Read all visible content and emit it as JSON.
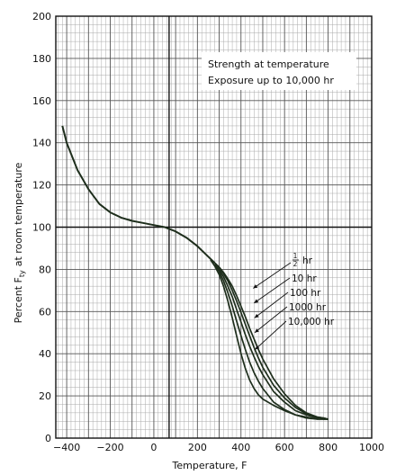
{
  "chart_data": {
    "type": "line",
    "xlabel": "Temperature, F",
    "ylabel": "Percent F",
    "ylabel_sub": "ty",
    "ylabel_suffix": "at room temperature",
    "xlim": [
      -450,
      1000
    ],
    "ylim": [
      0,
      200
    ],
    "xticks": [
      -400,
      -200,
      0,
      200,
      400,
      600,
      800,
      1000
    ],
    "yticks": [
      0,
      20,
      40,
      60,
      80,
      100,
      120,
      140,
      160,
      180,
      200
    ],
    "grid": true,
    "annotation": [
      "Strength at temperature",
      "Exposure up to 10,000 hr"
    ],
    "line_color": "#1e2e1c",
    "common_curve": {
      "x": [
        -420,
        -400,
        -350,
        -300,
        -250,
        -200,
        -150,
        -100,
        -50,
        0,
        50,
        100,
        150,
        200,
        250,
        280
      ],
      "y": [
        148,
        140,
        127,
        118,
        111,
        107,
        104.5,
        103,
        102,
        101,
        100,
        98,
        95,
        91,
        86,
        83
      ]
    },
    "series": [
      {
        "name": "1/2 hr",
        "label_num": "1",
        "label_den": "2",
        "label_unit": "hr",
        "x": [
          280,
          300,
          320,
          340,
          360,
          380,
          400,
          420,
          440,
          460,
          480,
          500,
          550,
          600,
          650,
          700,
          750,
          780,
          800
        ],
        "y": [
          83,
          81,
          78.5,
          75.5,
          72,
          67.5,
          62.5,
          57.5,
          52,
          47,
          42,
          37.5,
          28,
          21,
          15.5,
          12,
          10,
          9.5,
          9
        ]
      },
      {
        "name": "10 hr",
        "x": [
          280,
          300,
          320,
          340,
          360,
          380,
          400,
          420,
          440,
          460,
          480,
          500,
          550,
          600,
          650,
          700,
          750,
          780,
          800
        ],
        "y": [
          83,
          81,
          78,
          74.5,
          70,
          65,
          59.5,
          54,
          48.5,
          43,
          38,
          33.5,
          25,
          19,
          14.5,
          11.5,
          10,
          9.5,
          9
        ]
      },
      {
        "name": "100 hr",
        "x": [
          280,
          300,
          320,
          340,
          360,
          380,
          400,
          420,
          440,
          460,
          480,
          500,
          550,
          600,
          650,
          700,
          750,
          780,
          800
        ],
        "y": [
          82.5,
          80,
          76.5,
          72,
          67,
          61,
          55,
          49,
          43.5,
          38.5,
          34,
          30,
          22,
          17,
          13,
          11,
          9.5,
          9,
          9
        ]
      },
      {
        "name": "1000 hr",
        "x": [
          280,
          300,
          320,
          340,
          360,
          380,
          400,
          420,
          440,
          460,
          480,
          500,
          550,
          600,
          650,
          700,
          750,
          780,
          800
        ],
        "y": [
          82,
          79,
          74.5,
          69,
          62.5,
          55.5,
          48.5,
          42,
          36,
          31,
          27,
          23.5,
          17,
          13.5,
          11,
          10,
          9,
          9,
          9
        ]
      },
      {
        "name": "10,000 hr",
        "x": [
          260,
          280,
          300,
          320,
          340,
          360,
          380,
          400,
          420,
          440,
          460,
          480,
          500,
          550,
          600,
          650,
          700,
          750,
          800
        ],
        "y": [
          84.5,
          81.5,
          77.5,
          72,
          65,
          57,
          48.5,
          40,
          33,
          27.5,
          23.5,
          20.5,
          18.5,
          15.5,
          13,
          11,
          9.5,
          9,
          9
        ]
      }
    ]
  }
}
